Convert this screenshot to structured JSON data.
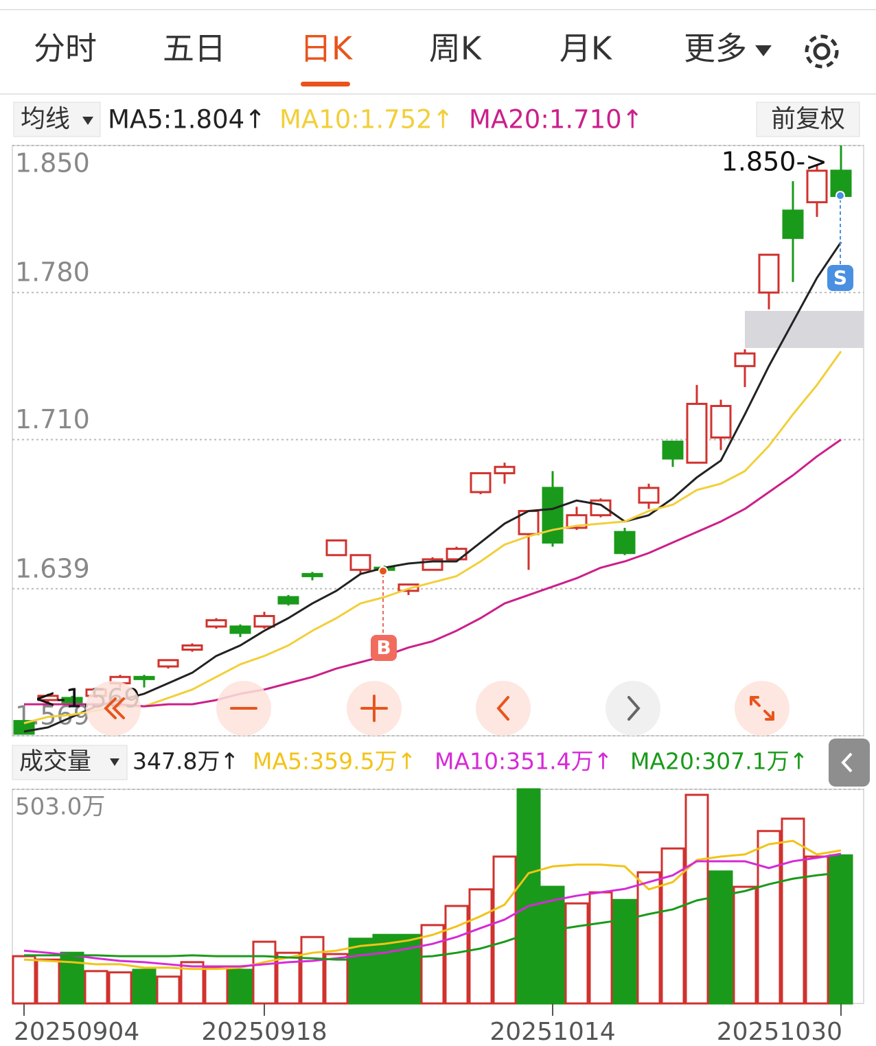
{
  "tabs": [
    "分时",
    "五日",
    "日K",
    "周K",
    "月K",
    "更多"
  ],
  "indicators": {
    "menu": "均线",
    "ma5": "MA5:1.804↑",
    "ma10": "MA10:1.752↑",
    "ma20": "MA20:1.710↑",
    "adjust": "前复权"
  },
  "volume_header": {
    "menu": "成交量",
    "volume": "347.8万↑",
    "ma5": "MA5:359.5万↑",
    "ma10": "MA10:351.4万↑",
    "ma20": "MA20:307.1万↑"
  },
  "chart_data": [
    {
      "type": "candlestick",
      "up_color": "#d0322e",
      "down_color": "#1a9a1a",
      "open": [
        1.576,
        1.586,
        1.587,
        1.588,
        1.594,
        1.597,
        1.602,
        1.61,
        1.621,
        1.621,
        1.621,
        1.635,
        1.646,
        1.655,
        1.648,
        1.649,
        1.638,
        1.648,
        1.653,
        1.685,
        1.694,
        1.665,
        1.687,
        1.668,
        1.674,
        1.666,
        1.68,
        1.709,
        1.699,
        1.711,
        1.745,
        1.78,
        1.819,
        1.823,
        1.838
      ],
      "high": [
        1.576,
        1.589,
        1.588,
        1.592,
        1.598,
        1.598,
        1.605,
        1.613,
        1.625,
        1.622,
        1.628,
        1.636,
        1.647,
        1.662,
        1.655,
        1.65,
        1.641,
        1.654,
        1.659,
        1.694,
        1.699,
        1.676,
        1.695,
        1.678,
        1.682,
        1.668,
        1.689,
        1.709,
        1.736,
        1.729,
        1.753,
        1.798,
        1.833,
        1.841,
        1.85
      ],
      "low": [
        1.57,
        1.585,
        1.585,
        1.587,
        1.592,
        1.592,
        1.601,
        1.609,
        1.62,
        1.616,
        1.62,
        1.631,
        1.643,
        1.655,
        1.646,
        1.646,
        1.636,
        1.648,
        1.653,
        1.684,
        1.689,
        1.648,
        1.659,
        1.667,
        1.673,
        1.655,
        1.677,
        1.697,
        1.699,
        1.705,
        1.735,
        1.772,
        1.785,
        1.816,
        1.825
      ],
      "close": [
        1.57,
        1.588,
        1.585,
        1.591,
        1.597,
        1.596,
        1.605,
        1.612,
        1.624,
        1.618,
        1.626,
        1.632,
        1.645,
        1.662,
        1.655,
        1.648,
        1.641,
        1.653,
        1.658,
        1.694,
        1.697,
        1.676,
        1.661,
        1.674,
        1.681,
        1.656,
        1.687,
        1.701,
        1.727,
        1.726,
        1.751,
        1.798,
        1.806,
        1.838,
        1.826
      ],
      "series": [
        {
          "name": "MA5",
          "color": "#222222",
          "values": [
            1.571,
            1.573,
            1.578,
            1.583,
            1.586,
            1.589,
            1.594,
            1.599,
            1.607,
            1.612,
            1.619,
            1.625,
            1.632,
            1.638,
            1.646,
            1.649,
            1.651,
            1.652,
            1.652,
            1.661,
            1.67,
            1.676,
            1.677,
            1.681,
            1.679,
            1.671,
            1.674,
            1.682,
            1.692,
            1.7,
            1.722,
            1.745,
            1.766,
            1.787,
            1.804
          ]
        },
        {
          "name": "MA10",
          "color": "#f2cf3a",
          "values": [
            1.575,
            1.578,
            1.579,
            1.581,
            1.583,
            1.583,
            1.587,
            1.591,
            1.597,
            1.603,
            1.607,
            1.612,
            1.619,
            1.625,
            1.632,
            1.635,
            1.639,
            1.642,
            1.645,
            1.652,
            1.66,
            1.664,
            1.667,
            1.669,
            1.67,
            1.671,
            1.676,
            1.679,
            1.686,
            1.689,
            1.695,
            1.707,
            1.722,
            1.736,
            1.752
          ]
        },
        {
          "name": "MA20",
          "color": "#cc1f8a",
          "values": [
            1.584,
            1.584,
            1.584,
            1.584,
            1.584,
            1.583,
            1.584,
            1.584,
            1.586,
            1.589,
            1.591,
            1.594,
            1.597,
            1.601,
            1.604,
            1.607,
            1.611,
            1.614,
            1.619,
            1.625,
            1.632,
            1.636,
            1.64,
            1.644,
            1.649,
            1.652,
            1.656,
            1.661,
            1.666,
            1.671,
            1.677,
            1.685,
            1.693,
            1.702,
            1.71
          ]
        }
      ],
      "ylim": [
        1.569,
        1.85
      ],
      "yticks": [
        {
          "value": 1.85,
          "label": "1.850"
        },
        {
          "value": 1.78,
          "label": "1.780"
        },
        {
          "value": 1.71,
          "label": "1.710"
        },
        1.639,
        1.569
      ],
      "annotations": {
        "high": "1.850->",
        "low": "<-1.569",
        "buy": "B",
        "sell": "S"
      }
    },
    {
      "type": "bar",
      "up_color": "#d0322e",
      "down_color": "#1a9a1a",
      "categories": [
        "20250904",
        null,
        null,
        null,
        null,
        null,
        null,
        null,
        null,
        null,
        "20250918",
        null,
        null,
        null,
        null,
        null,
        null,
        null,
        null,
        null,
        null,
        null,
        "20251014",
        null,
        null,
        null,
        null,
        null,
        null,
        null,
        null,
        null,
        null,
        null,
        "20251030"
      ],
      "values": [
        111,
        103,
        119,
        76,
        73,
        79,
        63,
        97,
        84,
        79,
        145,
        119,
        156,
        116,
        152,
        161,
        161,
        184,
        229,
        268,
        345,
        503,
        274,
        235,
        261,
        243,
        308,
        364,
        490,
        310,
        274,
        405,
        434,
        345,
        347.8
      ],
      "colors": [
        "#d0322e",
        "#d0322e",
        "#1a9a1a",
        "#d0322e",
        "#d0322e",
        "#1a9a1a",
        "#d0322e",
        "#d0322e",
        "#d0322e",
        "#1a9a1a",
        "#d0322e",
        "#d0322e",
        "#d0322e",
        "#d0322e",
        "#1a9a1a",
        "#1a9a1a",
        "#1a9a1a",
        "#d0322e",
        "#d0322e",
        "#d0322e",
        "#d0322e",
        "#1a9a1a",
        "#1a9a1a",
        "#d0322e",
        "#d0322e",
        "#1a9a1a",
        "#d0322e",
        "#d0322e",
        "#d0322e",
        "#1a9a1a",
        "#d0322e",
        "#d0322e",
        "#d0322e",
        "#d0322e",
        "#1a9a1a"
      ],
      "series": [
        {
          "name": "MA5",
          "color": "#f2c318",
          "values": [
            103,
            100,
            97,
            92,
            92,
            84,
            84,
            81,
            81,
            84,
            97,
            108,
            119,
            124,
            135,
            140,
            148,
            161,
            181,
            205,
            232,
            306,
            322,
            326,
            326,
            322,
            268,
            285,
            337,
            345,
            350,
            374,
            382,
            350,
            359.5
          ]
        },
        {
          "name": "MA10",
          "color": "#d62ad6",
          "values": [
            124,
            119,
            113,
            106,
            100,
            97,
            92,
            87,
            87,
            87,
            92,
            97,
            100,
            106,
            113,
            119,
            129,
            140,
            156,
            177,
            197,
            229,
            242,
            253,
            261,
            269,
            285,
            301,
            334,
            334,
            334,
            318,
            334,
            342,
            351.4
          ]
        },
        {
          "name": "MA20",
          "color": "#1a9a1a",
          "values": [
            113,
            113,
            113,
            113,
            111,
            111,
            111,
            113,
            111,
            111,
            111,
            108,
            106,
            103,
            103,
            105,
            108,
            111,
            119,
            129,
            145,
            164,
            172,
            181,
            189,
            197,
            210,
            221,
            242,
            253,
            264,
            280,
            293,
            301,
            307.1
          ]
        }
      ],
      "ylim": [
        0,
        503
      ],
      "yticks": [
        {
          "value": 503,
          "label": "503.0万"
        }
      ]
    }
  ]
}
